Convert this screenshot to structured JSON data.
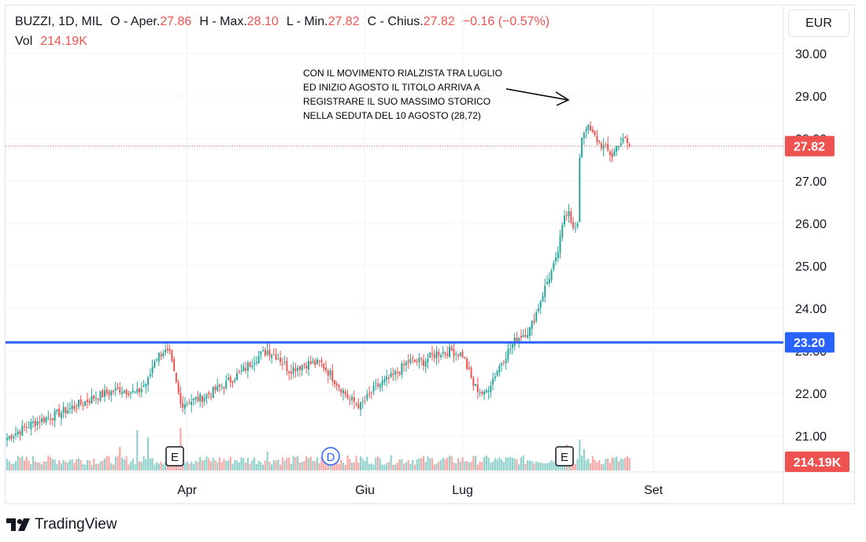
{
  "legend": {
    "symbol": "BUZZI, 1D, MIL",
    "open_label": "O - Aper.",
    "open_value": "27.86",
    "high_label": "H - Max.",
    "high_value": "28.10",
    "low_label": "L - Min.",
    "low_value": "27.82",
    "close_label": "C - Chius.",
    "close_value": "27.82",
    "change": "−0.16 (−0.57%)",
    "volume_label": "Vol",
    "volume_value": "214.19K"
  },
  "currency": "EUR",
  "annotation": [
    "CON IL MOVIMENTO RIALZISTA TRA LUGLIO",
    "ED INIZIO AGOSTO IL TITOLO ARRIVA A",
    "REGISTRARE IL SUO MASSIMO STORICO",
    "NELLA SEDUTA DEL 10 AGOSTO (28,72)"
  ],
  "footer_brand": "TradingView",
  "chart_data": {
    "type": "candlestick",
    "symbol": "BUZZI",
    "interval": "1D",
    "exchange": "MIL",
    "y_axis": {
      "ticks": [
        "30.00",
        "29.00",
        "28.00",
        "27.00",
        "26.00",
        "25.00",
        "24.00",
        "23.00",
        "22.00",
        "21.00"
      ],
      "range": [
        20.1,
        30.35
      ],
      "position": "right"
    },
    "x_axis": {
      "labels": [
        "Apr",
        "Giu",
        "Lug",
        "Set"
      ]
    },
    "grid": true,
    "price_label": "27.82",
    "horizontal_level": {
      "value": 23.2,
      "label": "23.20",
      "color": "#2962ff"
    },
    "volume_label": "214.19K",
    "events": [
      {
        "label": "E",
        "type": "earnings"
      },
      {
        "label": "D",
        "type": "dividend"
      },
      {
        "label": "E",
        "type": "earnings"
      }
    ],
    "colors": {
      "up": "#26a69a",
      "down": "#ef5350",
      "level": "#2962ff"
    },
    "waypoints": [
      [
        0,
        20.95
      ],
      [
        12,
        21.3
      ],
      [
        25,
        21.55
      ],
      [
        40,
        21.9
      ],
      [
        52,
        22.1
      ],
      [
        60,
        22.0
      ],
      [
        65,
        22.3
      ],
      [
        68,
        22.8
      ],
      [
        72,
        23.0
      ],
      [
        75,
        22.9
      ],
      [
        80,
        21.75
      ],
      [
        90,
        21.9
      ],
      [
        100,
        22.2
      ],
      [
        108,
        22.5
      ],
      [
        115,
        22.85
      ],
      [
        120,
        23.0
      ],
      [
        125,
        22.85
      ],
      [
        130,
        22.55
      ],
      [
        138,
        22.7
      ],
      [
        145,
        22.7
      ],
      [
        152,
        22.25
      ],
      [
        158,
        21.85
      ],
      [
        163,
        21.7
      ],
      [
        170,
        22.15
      ],
      [
        178,
        22.4
      ],
      [
        185,
        22.75
      ],
      [
        192,
        22.75
      ],
      [
        198,
        22.95
      ],
      [
        205,
        23.0
      ],
      [
        210,
        22.9
      ],
      [
        215,
        22.2
      ],
      [
        220,
        21.95
      ],
      [
        228,
        22.75
      ],
      [
        235,
        23.3
      ],
      [
        241,
        23.5
      ],
      [
        244,
        23.9
      ],
      [
        247,
        24.35
      ],
      [
        250,
        24.75
      ],
      [
        253,
        25.1
      ],
      [
        255,
        25.6
      ],
      [
        257,
        26.2
      ],
      [
        259,
        26.35
      ],
      [
        261,
        25.85
      ],
      [
        263,
        25.9
      ],
      [
        264,
        27.6
      ],
      [
        265,
        28.05
      ],
      [
        267,
        28.3
      ],
      [
        270,
        28.1
      ],
      [
        273,
        27.9
      ],
      [
        276,
        27.75
      ],
      [
        279,
        27.6
      ],
      [
        282,
        27.9
      ],
      [
        285,
        27.95
      ],
      [
        287,
        27.82
      ]
    ],
    "volume_peaks": [
      {
        "bar": 52,
        "ratio": 0.5
      },
      {
        "bar": 60,
        "ratio": 0.85
      },
      {
        "bar": 65,
        "ratio": 0.7
      },
      {
        "bar": 80,
        "ratio": 0.9
      },
      {
        "bar": 120,
        "ratio": 0.4
      },
      {
        "bar": 163,
        "ratio": 0.3
      },
      {
        "bar": 258,
        "ratio": 0.55
      },
      {
        "bar": 264,
        "ratio": 0.65
      },
      {
        "bar": 266,
        "ratio": 0.45
      }
    ]
  }
}
